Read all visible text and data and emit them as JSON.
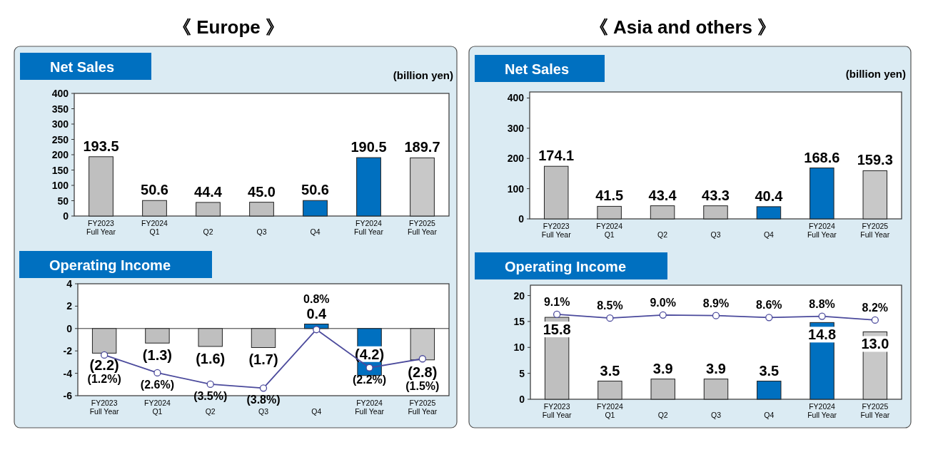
{
  "chart_data": [
    {
      "type": "bar",
      "title": "《 Europe 》",
      "subtitle": "Net Sales",
      "annotations": [
        "(billion yen)"
      ],
      "categories": [
        "FY2023 Full Year",
        "FY2024 Q1",
        "Q2",
        "Q3",
        "Q4",
        "FY2024 Full Year",
        "FY2025 Full Year"
      ],
      "ylim": [
        0,
        400
      ],
      "yticks": [
        0,
        50,
        100,
        150,
        200,
        250,
        300,
        350,
        400
      ],
      "series": [
        {
          "colors": [
            "#bfbfbf",
            "#bfbfbf",
            "#bfbfbf",
            "#bfbfbf",
            "#0070c0",
            "#0070c0",
            "#c8c8c8"
          ],
          "values": [
            193.5,
            50.6,
            44.4,
            45.0,
            50.6,
            190.5,
            189.7
          ],
          "value_labels": [
            "193.5",
            "50.6",
            "44.4",
            "45.0",
            "50.6",
            "190.5",
            "189.7"
          ]
        }
      ]
    },
    {
      "type": "bar",
      "title": "Operating Income",
      "categories": [
        "FY2023 Full Year",
        "FY2024 Q1",
        "Q2",
        "Q3",
        "Q4",
        "FY2024 Full Year",
        "FY2025 Full Year"
      ],
      "ylim": [
        -6,
        4
      ],
      "yticks": [
        -6,
        -4,
        -2,
        0,
        2,
        4
      ],
      "y2lim": [
        -4.4,
        4.4
      ],
      "marker": "circle",
      "series": [
        {
          "colors": [
            "#bfbfbf",
            "#bfbfbf",
            "#bfbfbf",
            "#bfbfbf",
            "#0070c0",
            "#0070c0",
            "#c8c8c8"
          ],
          "values": [
            -2.2,
            -1.3,
            -1.6,
            -1.7,
            0.4,
            -4.2,
            -2.8
          ],
          "value_labels": [
            "(2.2)",
            "(1.3)",
            "(1.6)",
            "(1.7)",
            "0.4",
            "(4.2)",
            "(2.8)"
          ]
        },
        {
          "type": "line",
          "axis": "y2",
          "color": "#4b4a9c",
          "values": [
            -1.2,
            -2.6,
            -3.5,
            -3.8,
            0.8,
            -2.2,
            -1.5
          ],
          "value_labels": [
            "(1.2%)",
            "(2.6%)",
            "(3.5%)",
            "(3.8%)",
            "0.8%",
            "(2.2%)",
            "(1.5%)"
          ]
        }
      ]
    },
    {
      "type": "bar",
      "title": "《 Asia and others 》",
      "subtitle": "Net Sales",
      "annotations": [
        "(billion yen)"
      ],
      "categories": [
        "FY2023 Full Year",
        "FY2024 Q1",
        "Q2",
        "Q3",
        "Q4",
        "FY2024 Full Year",
        "FY2025 Full Year"
      ],
      "ylim": [
        0,
        420
      ],
      "yticks": [
        0,
        100,
        200,
        300,
        400
      ],
      "series": [
        {
          "colors": [
            "#bfbfbf",
            "#bfbfbf",
            "#bfbfbf",
            "#bfbfbf",
            "#0070c0",
            "#0070c0",
            "#c8c8c8"
          ],
          "values": [
            174.1,
            41.5,
            43.4,
            43.3,
            40.4,
            168.6,
            159.3
          ],
          "value_labels": [
            "174.1",
            "41.5",
            "43.4",
            "43.3",
            "40.4",
            "168.6",
            "159.3"
          ]
        }
      ]
    },
    {
      "type": "bar",
      "title": "Operating Income",
      "categories": [
        "FY2023 Full Year",
        "FY2024 Q1",
        "Q2",
        "Q3",
        "Q4",
        "FY2024 Full Year",
        "FY2025 Full Year"
      ],
      "ylim": [
        0,
        22
      ],
      "yticks": [
        0,
        5,
        10,
        15,
        20
      ],
      "y2lim": [
        -4.3,
        13.7
      ],
      "marker": "circle",
      "series": [
        {
          "colors": [
            "#bfbfbf",
            "#bfbfbf",
            "#bfbfbf",
            "#bfbfbf",
            "#0070c0",
            "#0070c0",
            "#c8c8c8"
          ],
          "values": [
            15.8,
            3.5,
            3.9,
            3.9,
            3.5,
            14.8,
            13.0
          ],
          "value_labels": [
            "15.8",
            "3.5",
            "3.9",
            "3.9",
            "3.5",
            "14.8",
            "13.0"
          ]
        },
        {
          "type": "line",
          "axis": "y2",
          "color": "#4b4a9c",
          "values": [
            9.1,
            8.5,
            9.0,
            8.9,
            8.6,
            8.8,
            8.2
          ],
          "value_labels": [
            "9.1%",
            "8.5%",
            "9.0%",
            "8.9%",
            "8.6%",
            "8.8%",
            "8.2%"
          ]
        }
      ]
    }
  ]
}
